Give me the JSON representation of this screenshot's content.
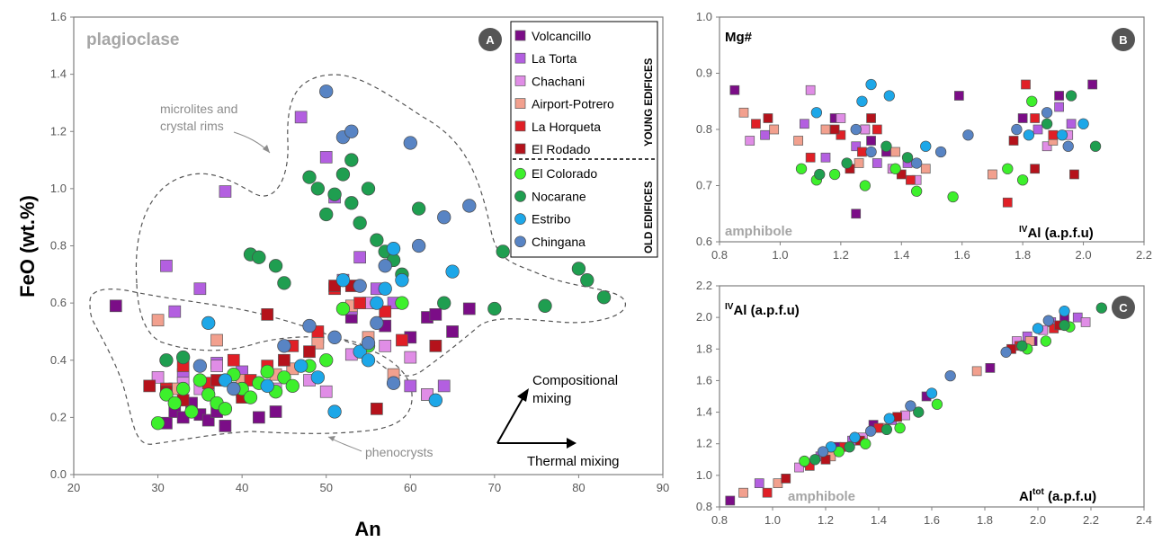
{
  "chart_data": [
    {
      "panel": "A",
      "type": "scatter",
      "xlabel": "An",
      "ylabel": "FeO (wt.%)",
      "xlim": [
        20,
        90
      ],
      "ylim": [
        0.0,
        1.6
      ],
      "xticks": [
        "20",
        "30",
        "40",
        "50",
        "60",
        "70",
        "80",
        "90"
      ],
      "yticks": [
        "0.0",
        "0.2",
        "0.4",
        "0.6",
        "0.8",
        "1.0",
        "1.2",
        "1.4",
        "1.6"
      ],
      "grid": false,
      "phase_label": "plagioclase",
      "badge": "A",
      "annotations": {
        "microlites_line1": "microlites and",
        "microlites_line2": "crystal rims",
        "phenocrysts": "phenocrysts",
        "compositional_line1": "Compositional",
        "compositional_line2": "mixing",
        "thermal": "Thermal mixing"
      },
      "legend": {
        "position": "top-right",
        "young_group_label": "YOUNG EDIFICES",
        "old_group_label": "OLD EDIFICES",
        "entries": [
          {
            "name": "Volcancillo",
            "marker": "square",
            "color": "#7b0d87"
          },
          {
            "name": "La Torta",
            "marker": "square",
            "color": "#b35fe0"
          },
          {
            "name": "Chachani",
            "marker": "square",
            "color": "#e08de6"
          },
          {
            "name": "Airport-Potrero",
            "marker": "square",
            "color": "#f2a08e"
          },
          {
            "name": "La Horqueta",
            "marker": "square",
            "color": "#e01f26"
          },
          {
            "name": "El Rodado",
            "marker": "square",
            "color": "#b5121b"
          },
          {
            "name": "El Colorado",
            "marker": "circle",
            "color": "#3df02c"
          },
          {
            "name": "Nocarane",
            "marker": "circle",
            "color": "#1f9e50"
          },
          {
            "name": "Estribo",
            "marker": "circle",
            "color": "#1da7e8"
          },
          {
            "name": "Chingana",
            "marker": "circle",
            "color": "#5884c4"
          }
        ]
      },
      "series": [
        {
          "name": "Volcancillo",
          "x": [
            25,
            31,
            32,
            33,
            34,
            35,
            36,
            37,
            38,
            42,
            44,
            49,
            53,
            57,
            60,
            62,
            63,
            65,
            67
          ],
          "y": [
            0.59,
            0.18,
            0.22,
            0.2,
            0.25,
            0.21,
            0.19,
            0.22,
            0.17,
            0.2,
            0.22,
            0.48,
            0.55,
            0.52,
            0.48,
            0.55,
            0.56,
            0.5,
            0.58
          ]
        },
        {
          "name": "La Torta",
          "x": [
            31,
            32,
            33,
            35,
            36,
            37,
            38,
            40,
            47,
            50,
            51,
            52,
            53,
            54,
            56,
            58,
            60,
            62,
            64
          ],
          "y": [
            0.73,
            0.57,
            0.35,
            0.65,
            0.31,
            0.39,
            0.99,
            0.36,
            1.25,
            1.11,
            0.97,
            0.68,
            0.58,
            0.76,
            0.65,
            0.6,
            0.31,
            0.28,
            0.31
          ]
        },
        {
          "name": "Chachani",
          "x": [
            30,
            33,
            35,
            37,
            40,
            44,
            48,
            50,
            53,
            55,
            57,
            60,
            62
          ],
          "y": [
            0.34,
            0.32,
            0.3,
            0.38,
            0.29,
            0.3,
            0.33,
            0.29,
            0.42,
            0.6,
            0.45,
            0.41,
            0.28
          ]
        },
        {
          "name": "Airport-Potrero",
          "x": [
            30,
            32,
            37,
            40,
            44,
            46,
            49,
            53,
            55,
            58
          ],
          "y": [
            0.54,
            0.3,
            0.47,
            0.33,
            0.35,
            0.37,
            0.46,
            0.59,
            0.48,
            0.35
          ]
        },
        {
          "name": "La Horqueta",
          "x": [
            31,
            33,
            36,
            39,
            41,
            43,
            46,
            49,
            51,
            54,
            57,
            59
          ],
          "y": [
            0.3,
            0.38,
            0.32,
            0.4,
            0.33,
            0.38,
            0.45,
            0.5,
            0.65,
            0.6,
            0.57,
            0.47
          ]
        },
        {
          "name": "El Rodado",
          "x": [
            29,
            31,
            33,
            37,
            40,
            43,
            45,
            48,
            51,
            53,
            56,
            63
          ],
          "y": [
            0.31,
            0.29,
            0.26,
            0.33,
            0.27,
            0.56,
            0.4,
            0.43,
            0.66,
            0.66,
            0.23,
            0.45
          ]
        },
        {
          "name": "El Colorado",
          "x": [
            30,
            31,
            32,
            33,
            34,
            35,
            36,
            37,
            38,
            39,
            40,
            41,
            42,
            43,
            44,
            45,
            46,
            48,
            50,
            52,
            55,
            59
          ],
          "y": [
            0.18,
            0.28,
            0.25,
            0.3,
            0.22,
            0.33,
            0.28,
            0.25,
            0.23,
            0.35,
            0.3,
            0.27,
            0.32,
            0.36,
            0.29,
            0.34,
            0.31,
            0.38,
            0.4,
            0.58,
            0.45,
            0.6
          ]
        },
        {
          "name": "Nocarane",
          "x": [
            31,
            33,
            41,
            42,
            44,
            45,
            48,
            49,
            50,
            51,
            52,
            53,
            53,
            54,
            55,
            56,
            57,
            58,
            59,
            61,
            64,
            70,
            71,
            76,
            80,
            81,
            83
          ],
          "y": [
            0.4,
            0.41,
            0.77,
            0.76,
            0.73,
            0.67,
            1.04,
            1.0,
            0.91,
            0.98,
            1.05,
            0.95,
            1.1,
            0.88,
            1.0,
            0.82,
            0.78,
            0.75,
            0.7,
            0.93,
            0.6,
            0.58,
            0.78,
            0.59,
            0.72,
            0.68,
            0.62
          ]
        },
        {
          "name": "Estribo",
          "x": [
            36,
            38,
            43,
            47,
            49,
            51,
            52,
            54,
            55,
            56,
            57,
            58,
            59,
            63,
            65
          ],
          "y": [
            0.53,
            0.33,
            0.31,
            0.38,
            0.34,
            0.22,
            0.68,
            0.43,
            0.4,
            0.6,
            0.65,
            0.79,
            0.68,
            0.26,
            0.71
          ]
        },
        {
          "name": "Chingana",
          "x": [
            35,
            39,
            45,
            48,
            50,
            51,
            52,
            53,
            54,
            55,
            56,
            57,
            58,
            60,
            61,
            64,
            67
          ],
          "y": [
            0.38,
            0.3,
            0.45,
            0.52,
            1.34,
            0.48,
            1.18,
            1.2,
            0.66,
            0.46,
            0.53,
            0.73,
            0.32,
            1.16,
            0.8,
            0.9,
            0.94
          ]
        }
      ]
    },
    {
      "panel": "B",
      "type": "scatter",
      "xlabel": "IVAl (a.p.f.u)",
      "xlabel_sup": "IV",
      "xlabel_main": "Al (a.p.f.u)",
      "ylabel": "Mg#",
      "xlim": [
        0.8,
        2.2
      ],
      "ylim": [
        0.6,
        1.0
      ],
      "xticks": [
        "0.8",
        "1.0",
        "1.2",
        "1.4",
        "1.6",
        "1.8",
        "2.0",
        "2.2"
      ],
      "yticks": [
        "0.6",
        "0.7",
        "0.8",
        "0.9",
        "1.0"
      ],
      "grid": false,
      "phase_label": "amphibole",
      "badge": "B",
      "series": [
        {
          "name": "Volcancillo",
          "x": [
            0.85,
            1.18,
            1.25,
            1.3,
            1.35,
            1.59,
            1.8,
            1.92,
            2.03
          ],
          "y": [
            0.87,
            0.82,
            0.65,
            0.78,
            0.76,
            0.86,
            0.82,
            0.86,
            0.88
          ]
        },
        {
          "name": "La Torta",
          "x": [
            0.95,
            1.08,
            1.15,
            1.25,
            1.28,
            1.32,
            1.42,
            1.85,
            1.92,
            1.96
          ],
          "y": [
            0.79,
            0.81,
            0.75,
            0.77,
            0.8,
            0.74,
            0.74,
            0.8,
            0.84,
            0.81
          ]
        },
        {
          "name": "Chachani",
          "x": [
            0.9,
            1.1,
            1.2,
            1.28,
            1.37,
            1.45,
            1.88,
            1.95
          ],
          "y": [
            0.78,
            0.87,
            0.82,
            0.8,
            0.73,
            0.71,
            0.77,
            0.79
          ]
        },
        {
          "name": "Airport-Potrero",
          "x": [
            0.88,
            0.98,
            1.06,
            1.15,
            1.26,
            1.38,
            1.48,
            1.7,
            1.9
          ],
          "y": [
            0.83,
            0.8,
            0.78,
            0.8,
            0.74,
            0.76,
            0.73,
            0.72,
            0.78
          ]
        },
        {
          "name": "La Horqueta",
          "x": [
            0.92,
            1.1,
            1.2,
            1.27,
            1.32,
            1.43,
            1.75,
            1.81,
            1.84,
            1.9
          ],
          "y": [
            0.81,
            0.75,
            0.79,
            0.76,
            0.8,
            0.71,
            0.67,
            0.88,
            0.82,
            0.79
          ]
        },
        {
          "name": "El Rodado",
          "x": [
            0.96,
            1.18,
            1.23,
            1.3,
            1.4,
            1.77,
            1.84,
            1.97
          ],
          "y": [
            0.82,
            0.8,
            0.73,
            0.82,
            0.72,
            0.78,
            0.73,
            0.72
          ]
        },
        {
          "name": "El Colorado",
          "x": [
            1.07,
            1.12,
            1.18,
            1.28,
            1.38,
            1.45,
            1.57,
            1.75,
            1.8,
            1.83
          ],
          "y": [
            0.73,
            0.71,
            0.72,
            0.7,
            0.73,
            0.69,
            0.68,
            0.73,
            0.71,
            0.85
          ]
        },
        {
          "name": "Nocarane",
          "x": [
            1.13,
            1.22,
            1.35,
            1.42,
            1.88,
            1.96,
            2.04
          ],
          "y": [
            0.72,
            0.74,
            0.77,
            0.75,
            0.81,
            0.86,
            0.77
          ]
        },
        {
          "name": "Estribo",
          "x": [
            1.12,
            1.27,
            1.3,
            1.36,
            1.48,
            1.82,
            1.93,
            2.0
          ],
          "y": [
            0.83,
            0.85,
            0.88,
            0.86,
            0.77,
            0.79,
            0.79,
            0.81
          ]
        },
        {
          "name": "Chingana",
          "x": [
            1.25,
            1.3,
            1.45,
            1.53,
            1.62,
            1.78,
            1.88,
            1.95
          ],
          "y": [
            0.8,
            0.76,
            0.74,
            0.76,
            0.79,
            0.8,
            0.83,
            0.77
          ]
        }
      ]
    },
    {
      "panel": "C",
      "type": "scatter",
      "xlabel": "Altot (a.p.f.u)",
      "xlabel_sup": "tot",
      "xlabel_main": "Al",
      "xlabel_tail": " (a.p.f.u)",
      "ylabel": "IVAl (a.p.f.u)",
      "ylabel_sup": "IV",
      "ylabel_main": "Al (a.p.f.u)",
      "xlim": [
        0.8,
        2.4
      ],
      "ylim": [
        0.8,
        2.2
      ],
      "xticks": [
        "0.8",
        "1.0",
        "1.2",
        "1.4",
        "1.6",
        "1.8",
        "2.0",
        "2.2",
        "2.4"
      ],
      "yticks": [
        "0.8",
        "1.0",
        "1.2",
        "1.4",
        "1.6",
        "1.8",
        "2.0",
        "2.2"
      ],
      "grid": false,
      "phase_label": "amphibole",
      "badge": "C",
      "series": [
        {
          "name": "Volcancillo",
          "x": [
            0.84,
            1.12,
            1.24,
            1.38,
            1.58,
            1.82,
            1.98,
            2.1
          ],
          "y": [
            0.84,
            1.08,
            1.18,
            1.32,
            1.5,
            1.68,
            1.85,
            2.0
          ]
        },
        {
          "name": "La Torta",
          "x": [
            0.95,
            1.18,
            1.3,
            1.45,
            1.96,
            2.05,
            2.15
          ],
          "y": [
            0.95,
            1.12,
            1.22,
            1.35,
            1.88,
            1.97,
            2.0
          ]
        },
        {
          "name": "Chachani",
          "x": [
            1.1,
            1.2,
            1.34,
            1.5,
            1.92,
            2.02,
            2.18
          ],
          "y": [
            1.05,
            1.13,
            1.24,
            1.38,
            1.85,
            1.92,
            1.97
          ]
        },
        {
          "name": "Airport-Potrero",
          "x": [
            0.89,
            1.02,
            1.22,
            1.42,
            1.77,
            1.97
          ],
          "y": [
            0.89,
            0.95,
            1.12,
            1.3,
            1.66,
            1.85
          ]
        },
        {
          "name": "La Horqueta",
          "x": [
            0.98,
            1.14,
            1.27,
            1.4,
            1.93,
            2.06
          ],
          "y": [
            0.89,
            1.06,
            1.18,
            1.3,
            1.82,
            1.93
          ]
        },
        {
          "name": "El Rodado",
          "x": [
            1.05,
            1.2,
            1.33,
            1.47,
            1.9,
            2.08
          ],
          "y": [
            0.98,
            1.1,
            1.22,
            1.37,
            1.8,
            1.95
          ]
        },
        {
          "name": "El Colorado",
          "x": [
            1.12,
            1.25,
            1.35,
            1.48,
            1.62,
            1.96,
            2.03,
            2.12
          ],
          "y": [
            1.09,
            1.15,
            1.2,
            1.3,
            1.45,
            1.8,
            1.85,
            1.94
          ]
        },
        {
          "name": "Nocarane",
          "x": [
            1.16,
            1.29,
            1.43,
            1.55,
            1.94,
            2.1,
            2.24
          ],
          "y": [
            1.1,
            1.18,
            1.29,
            1.4,
            1.82,
            1.95,
            2.06
          ]
        },
        {
          "name": "Estribo",
          "x": [
            1.22,
            1.31,
            1.44,
            1.6,
            2.0,
            2.1
          ],
          "y": [
            1.18,
            1.24,
            1.36,
            1.52,
            1.93,
            2.04
          ]
        },
        {
          "name": "Chingana",
          "x": [
            1.19,
            1.37,
            1.52,
            1.67,
            1.88,
            2.04
          ],
          "y": [
            1.15,
            1.28,
            1.44,
            1.63,
            1.78,
            1.98
          ]
        }
      ]
    }
  ]
}
